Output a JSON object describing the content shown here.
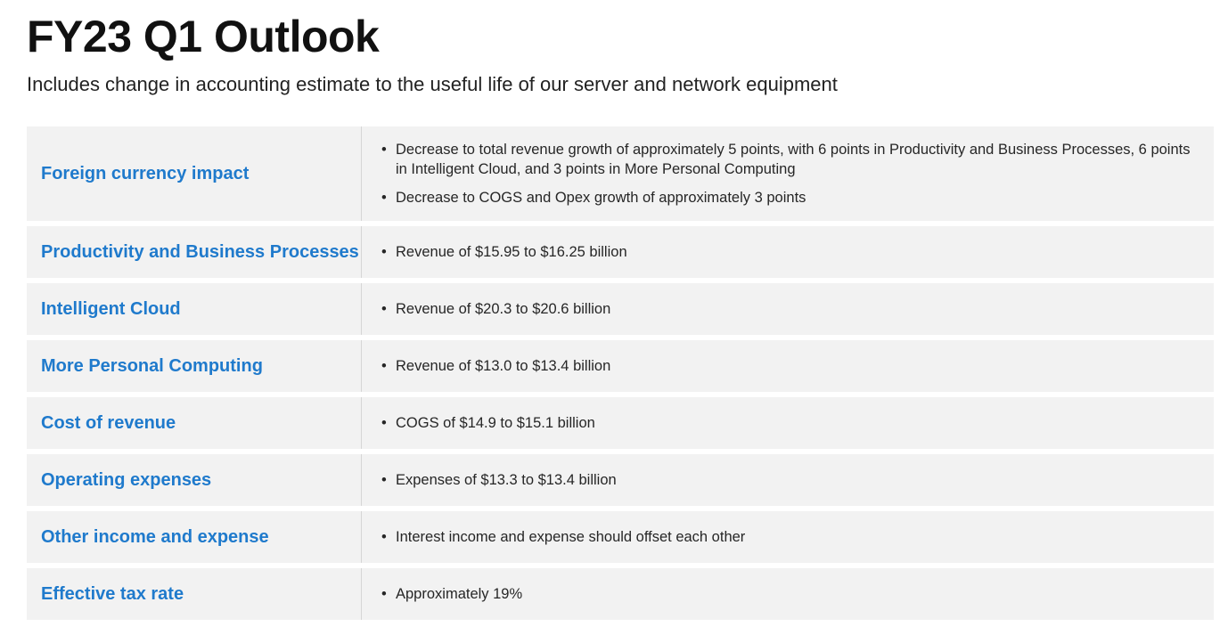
{
  "title": "FY23 Q1 Outlook",
  "subtitle": "Includes change in accounting estimate to the useful life of our server and network equipment",
  "bullet_glyph": "•",
  "colors": {
    "label": "#1f7acc",
    "row_background": "#f2f2f2",
    "divider": "#d6d6d6"
  },
  "rows": [
    {
      "label": "Foreign currency impact",
      "bullets": [
        "Decrease to total revenue growth of approximately 5 points, with 6 points in Productivity and Business Processes, 6 points in Intelligent Cloud, and 3 points in More Personal Computing",
        "Decrease to COGS and Opex growth of approximately 3 points"
      ]
    },
    {
      "label": "Productivity and Business Processes",
      "bullets": [
        "Revenue of $15.95 to $16.25 billion"
      ]
    },
    {
      "label": "Intelligent Cloud",
      "bullets": [
        "Revenue of $20.3 to $20.6 billion"
      ]
    },
    {
      "label": "More Personal Computing",
      "bullets": [
        "Revenue of $13.0 to $13.4 billion"
      ]
    },
    {
      "label": "Cost of revenue",
      "bullets": [
        "COGS of $14.9 to $15.1 billion"
      ]
    },
    {
      "label": "Operating expenses",
      "bullets": [
        "Expenses of $13.3 to $13.4 billion"
      ]
    },
    {
      "label": "Other income and expense",
      "bullets": [
        "Interest income and expense should offset each other"
      ]
    },
    {
      "label": "Effective tax rate",
      "bullets": [
        "Approximately 19%"
      ]
    }
  ]
}
